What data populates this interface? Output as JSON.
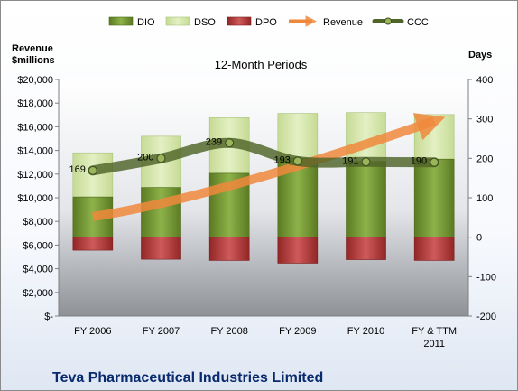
{
  "chart_data": {
    "type": "bar",
    "title": "12-Month Periods",
    "company": "Teva Pharmaceutical Industries Limited",
    "left_axis_label_line1": "Revenue",
    "left_axis_label_line2": "$millions",
    "right_axis_label": "Days",
    "categories": [
      [
        "FY 2006"
      ],
      [
        "FY 2007"
      ],
      [
        "FY 2008"
      ],
      [
        "FY 2009"
      ],
      [
        "FY 2010"
      ],
      [
        "FY & TTM",
        "2011"
      ]
    ],
    "left_ticks": [
      "$-",
      "$2,000",
      "$4,000",
      "$6,000",
      "$8,000",
      "$10,000",
      "$12,000",
      "$14,000",
      "$16,000",
      "$18,000",
      "$20,000"
    ],
    "right_ticks": [
      "-200",
      "-100",
      "0",
      "100",
      "200",
      "300",
      "400"
    ],
    "ylim_right": [
      -200,
      400
    ],
    "legend": [
      "DIO",
      "DSO",
      "DPO",
      "Revenue",
      "CCC"
    ],
    "series": [
      {
        "name": "DIO",
        "values": [
          102,
          126,
          162,
          200,
          192,
          198
        ]
      },
      {
        "name": "DSO",
        "values": [
          112,
          130,
          141,
          114,
          124,
          113
        ]
      },
      {
        "name": "DPO",
        "values": [
          -33,
          -56,
          -59,
          -66,
          -57,
          -59
        ]
      },
      {
        "name": "CCC",
        "values": [
          169,
          200,
          239,
          193,
          191,
          190
        ]
      }
    ],
    "ccc_labels": [
      "169",
      "200",
      "239",
      "193",
      "191",
      "190"
    ],
    "revenue_trend": {
      "name": "Revenue",
      "values": [
        8400,
        11300,
        16500
      ]
    },
    "grid": false,
    "legend_position": "top",
    "colors": {
      "DIO": "#6e8e2e",
      "DSO": "#d3e6a6",
      "DPO": "#b53a3a",
      "Revenue": "#f0883c",
      "CCC": "#4f6428"
    }
  }
}
